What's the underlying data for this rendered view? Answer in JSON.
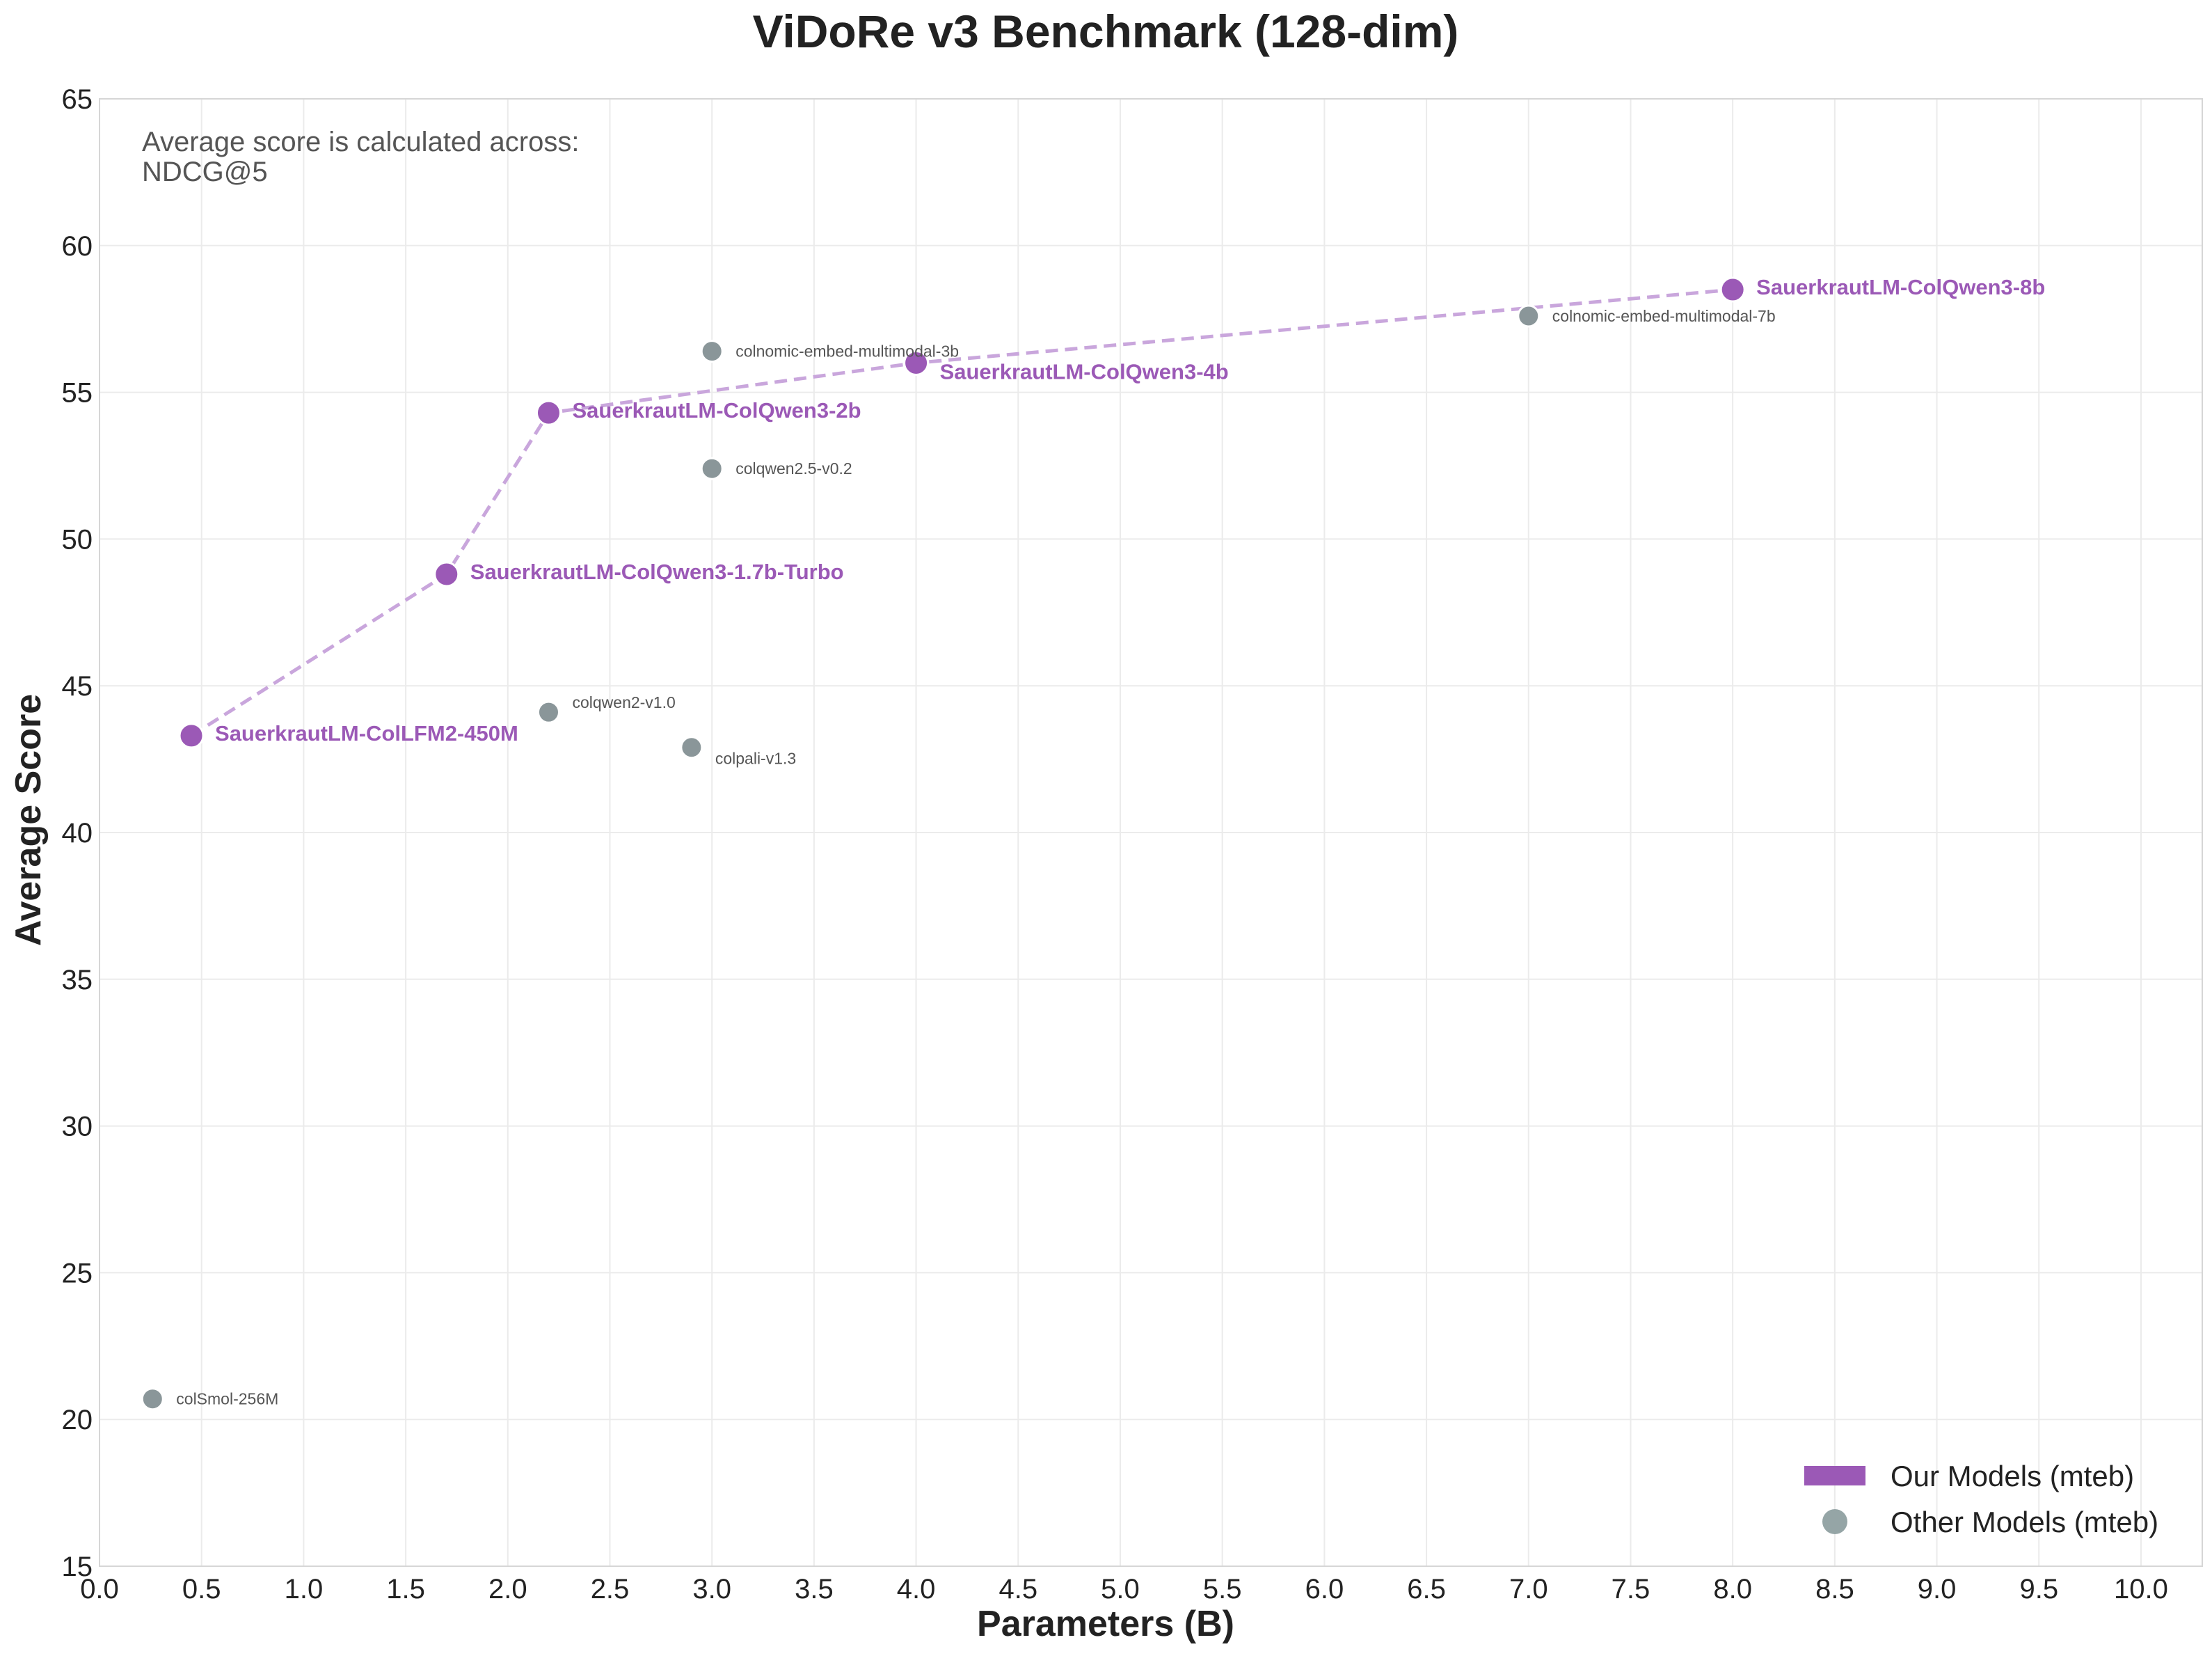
{
  "chart_data": {
    "type": "scatter",
    "title": "ViDoRe v3 Benchmark (128-dim)",
    "xlabel": "Parameters (B)",
    "ylabel": "Average Score",
    "xlim": [
      0.0,
      10.3
    ],
    "ylim": [
      15,
      65
    ],
    "xticks": [
      "0.0",
      "0.5",
      "1.0",
      "1.5",
      "2.0",
      "2.5",
      "3.0",
      "3.5",
      "4.0",
      "4.5",
      "5.0",
      "5.5",
      "6.0",
      "6.5",
      "7.0",
      "7.5",
      "8.0",
      "8.5",
      "9.0",
      "9.5",
      "10.0"
    ],
    "xtick_values": [
      0.0,
      0.5,
      1.0,
      1.5,
      2.0,
      2.5,
      3.0,
      3.5,
      4.0,
      4.5,
      5.0,
      5.5,
      6.0,
      6.5,
      7.0,
      7.5,
      8.0,
      8.5,
      9.0,
      9.5,
      10.0
    ],
    "yticks": [
      "15",
      "20",
      "25",
      "30",
      "35",
      "40",
      "45",
      "50",
      "55",
      "60",
      "65"
    ],
    "ytick_values": [
      15,
      20,
      25,
      30,
      35,
      40,
      45,
      50,
      55,
      60,
      65
    ],
    "grid": true,
    "annotation": [
      "Average score is calculated across:",
      "NDCG@5"
    ],
    "colors": {
      "ours": "#9b59b6",
      "ours_line": "#c9a6dc",
      "other": "#8a9699"
    },
    "legend": {
      "placement": "bottom-right",
      "entries": [
        {
          "label": "Our Models (mteb)",
          "marker": "bar",
          "color": "#9b59b6"
        },
        {
          "label": "Other Models (mteb)",
          "marker": "circle",
          "color": "#95a5a6"
        }
      ]
    },
    "series": [
      {
        "name": "Our Models (mteb)",
        "connected": true,
        "points": [
          {
            "label": "SauerkrautLM-ColLFM2-450M",
            "x": 0.45,
            "y": 43.3
          },
          {
            "label": "SauerkrautLM-ColQwen3-1.7b-Turbo",
            "x": 1.7,
            "y": 48.8
          },
          {
            "label": "SauerkrautLM-ColQwen3-2b",
            "x": 2.2,
            "y": 54.3
          },
          {
            "label": "SauerkrautLM-ColQwen3-4b",
            "x": 4.0,
            "y": 56.0
          },
          {
            "label": "SauerkrautLM-ColQwen3-8b",
            "x": 8.0,
            "y": 58.5
          }
        ]
      },
      {
        "name": "Other Models (mteb)",
        "connected": false,
        "points": [
          {
            "label": "colSmol-256M",
            "x": 0.26,
            "y": 20.7
          },
          {
            "label": "colqwen2-v1.0",
            "x": 2.2,
            "y": 44.1
          },
          {
            "label": "colpali-v1.3",
            "x": 2.9,
            "y": 42.9
          },
          {
            "label": "colqwen2.5-v0.2",
            "x": 3.0,
            "y": 52.4
          },
          {
            "label": "colnomic-embed-multimodal-3b",
            "x": 3.0,
            "y": 56.4
          },
          {
            "label": "colnomic-embed-multimodal-7b",
            "x": 7.0,
            "y": 57.6
          }
        ]
      }
    ]
  }
}
